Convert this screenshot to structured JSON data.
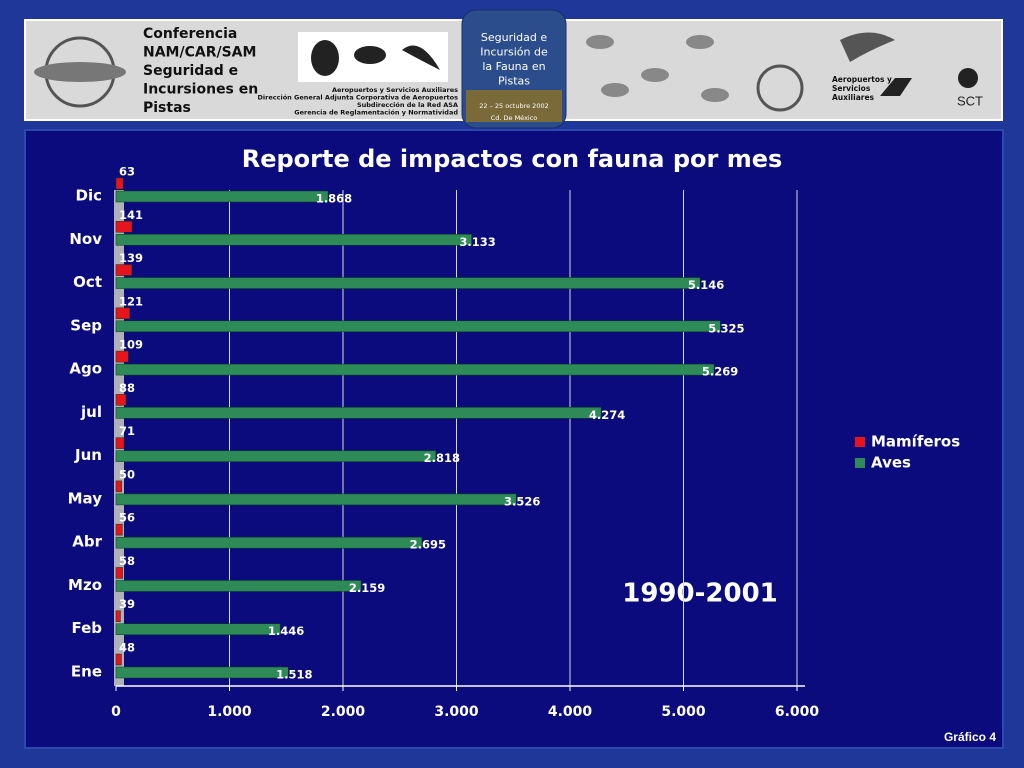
{
  "header": {
    "conference_lines": [
      "Conferencia",
      "NAM/CAR/SAM",
      "Seguridad e",
      "Incursiones en",
      "Pistas"
    ],
    "org_lines": [
      "Aeropuertos y Servicios Auxiliares",
      "Dirección General Adjunta Corporativa de Aeropuertos",
      "Subdirección de la Red ASA",
      "Gerencia de Reglamentación y Normatividad"
    ],
    "event_lines": [
      "Seguridad e",
      "Incursión de",
      "la Fauna en",
      "Pistas"
    ],
    "event_dates": "22 – 25 octubre 2002",
    "event_place": "Cd. De México",
    "asa_lines": [
      "Aeropuertos y",
      "Servicios",
      "Auxiliares"
    ],
    "sct": "SCT"
  },
  "chart_data": {
    "type": "bar",
    "orientation": "horizontal",
    "title": "Reporte de impactos con fauna por mes",
    "annotation": "1990-2001",
    "footer": "Gráfico 4",
    "categories": [
      "Ene",
      "Feb",
      "Mzo",
      "Abr",
      "May",
      "Jun",
      "jul",
      "Ago",
      "Sep",
      "Oct",
      "Nov",
      "Dic"
    ],
    "series": [
      {
        "name": "Mamíferos",
        "color": "#e8141c",
        "values": [
          48,
          39,
          58,
          56,
          50,
          71,
          88,
          109,
          121,
          139,
          141,
          63
        ]
      },
      {
        "name": "Aves",
        "color": "#2e8b57",
        "values": [
          1518,
          1446,
          2159,
          2695,
          3526,
          2818,
          4274,
          5269,
          5325,
          5146,
          3133,
          1868
        ],
        "value_labels": [
          "1.518",
          "1.446",
          "2.159",
          "2.695",
          "3.526",
          "2.818",
          "4.274",
          "5.269",
          "5.325",
          "5.146",
          "3.133",
          "1.868"
        ]
      }
    ],
    "xlim": [
      0,
      6000
    ],
    "xticks": [
      0,
      {
        "value": 1000,
        "label": "1.000"
      },
      {
        "value": 2000,
        "label": "2.000"
      },
      {
        "value": 3000,
        "label": "3.000"
      },
      {
        "value": 4000,
        "label": "4.000"
      },
      {
        "value": 5000,
        "label": "5.000"
      },
      {
        "value": 6000,
        "label": "6.000"
      }
    ],
    "grid": true,
    "legend": "right"
  }
}
